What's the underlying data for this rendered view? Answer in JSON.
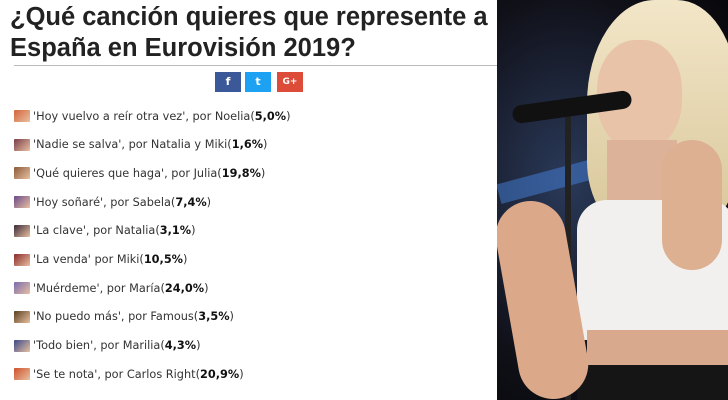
{
  "title": "¿Qué canción quieres que represente a España en Eurovisión 2019?",
  "share": {
    "facebook": "f",
    "twitter": "t",
    "googleplus": "G+"
  },
  "items": [
    {
      "text": "'Hoy vuelvo a reír otra vez', por Noelia ",
      "pct": "5,0%",
      "color": "#d4643a"
    },
    {
      "text": "'Nadie se salva', por Natalia y Miki ",
      "pct": "1,6%",
      "color": "#7a3d4a"
    },
    {
      "text": "'Qué quieres que haga', por Julia ",
      "pct": "19,8%",
      "color": "#8a5a3a"
    },
    {
      "text": "'Hoy soñaré', por Sabela ",
      "pct": "7,4%",
      "color": "#6a4a8a"
    },
    {
      "text": "'La clave', por Natalia ",
      "pct": "3,1%",
      "color": "#3a2a3a"
    },
    {
      "text": "'La venda' por Miki ",
      "pct": "10,5%",
      "color": "#8a2a2a"
    },
    {
      "text": "'Muérdeme', por María ",
      "pct": "24,0%",
      "color": "#7a6ab0"
    },
    {
      "text": "'No puedo más', por Famous ",
      "pct": "3,5%",
      "color": "#5a4020"
    },
    {
      "text": "'Todo bien', por Marilia ",
      "pct": "4,3%",
      "color": "#3a4a8a"
    },
    {
      "text": "'Se te nota', por Carlos Right ",
      "pct": "20,9%",
      "color": "#d0502a"
    }
  ]
}
